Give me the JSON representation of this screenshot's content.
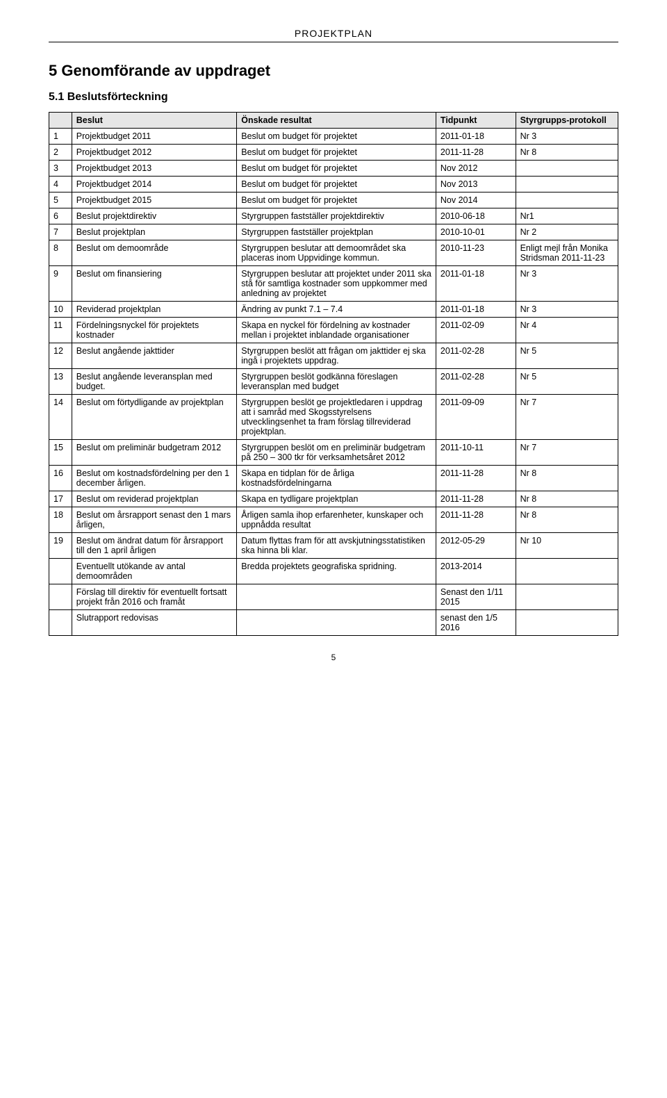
{
  "doc_header": "PROJEKTPLAN",
  "h1": "5  Genomförande av uppdraget",
  "h2": "5.1 Beslutsförteckning",
  "page_number": "5",
  "columns": {
    "c0": "",
    "c1": "Beslut",
    "c2": "Önskade resultat",
    "c3": "Tidpunkt",
    "c4": "Styrgrupps-protokoll"
  },
  "rows": [
    {
      "n": "1",
      "b": "Projektbudget 2011",
      "r": "Beslut om budget för projektet",
      "t": "2011-01-18",
      "p": "Nr 3"
    },
    {
      "n": "2",
      "b": "Projektbudget 2012",
      "r": "Beslut om budget för projektet",
      "t": "2011-11-28",
      "p": "Nr 8"
    },
    {
      "n": "3",
      "b": "Projektbudget 2013",
      "r": "Beslut om budget för projektet",
      "t": "Nov 2012",
      "p": ""
    },
    {
      "n": "4",
      "b": "Projektbudget 2014",
      "r": "Beslut om budget för projektet",
      "t": "Nov 2013",
      "p": ""
    },
    {
      "n": "5",
      "b": "Projektbudget 2015",
      "r": "Beslut om budget för projektet",
      "t": "Nov 2014",
      "p": ""
    },
    {
      "n": "6",
      "b": "Beslut projektdirektiv",
      "r": "Styrgruppen fastställer projektdirektiv",
      "t": "2010-06-18",
      "p": "Nr1"
    },
    {
      "n": "7",
      "b": "Beslut projektplan",
      "r": "Styrgruppen fastställer projektplan",
      "t": "2010-10-01",
      "p": "Nr 2"
    },
    {
      "n": "8",
      "b": "Beslut om demoområde",
      "r": "Styrgruppen beslutar att demoområdet ska placeras inom Uppvidinge kommun.",
      "t": "2010-11-23",
      "p": "Enligt mejl från Monika Stridsman 2011-11-23"
    },
    {
      "n": "9",
      "b": "Beslut om finansiering",
      "r": "Styrgruppen beslutar att projektet under 2011 ska stå för samtliga kostnader som uppkommer med anledning av projektet",
      "t": "2011-01-18",
      "p": "Nr 3"
    },
    {
      "n": "10",
      "b": "Reviderad projektplan",
      "r": "Ändring av punkt 7.1 – 7.4",
      "t": "2011-01-18",
      "p": "Nr 3"
    },
    {
      "n": "11",
      "b": "Fördelningsnyckel för projektets kostnader",
      "r": "Skapa en nyckel för fördelning av kostnader mellan i projektet inblandade organisationer",
      "t": "2011-02-09",
      "p": "Nr 4"
    },
    {
      "n": "12",
      "b": "Beslut angående jakttider",
      "r": "Styrgruppen beslöt att frågan om jakttider ej ska ingå i projektets uppdrag.",
      "t": "2011-02-28",
      "p": "Nr 5"
    },
    {
      "n": "13",
      "b": "Beslut angående leveransplan med budget.",
      "r": "Styrgruppen beslöt godkänna föreslagen leveransplan med budget",
      "t": "2011-02-28",
      "p": "Nr 5"
    },
    {
      "n": "14",
      "b": "Beslut om förtydligande av projektplan",
      "r": "Styrgruppen beslöt ge projektledaren i uppdrag att i samråd med Skogsstyrelsens utvecklingsenhet ta fram förslag tillreviderad projektplan.",
      "t": "2011-09-09",
      "p": "Nr 7"
    },
    {
      "n": "15",
      "b": "Beslut om preliminär budgetram 2012",
      "r": "Styrgruppen beslöt  om en preliminär budgetram på 250 – 300 tkr för verksamhetsåret 2012",
      "t": "2011-10-11",
      "p": "Nr 7"
    },
    {
      "n": "16",
      "b": "Beslut om kostnadsfördelning per den 1 december årligen.",
      "r": "Skapa en tidplan för de årliga kostnadsfördelningarna",
      "t": "2011-11-28",
      "p": "Nr 8"
    },
    {
      "n": "17",
      "b": "Beslut om reviderad projektplan",
      "r": "Skapa en tydligare projektplan",
      "t": "2011-11-28",
      "p": "Nr 8"
    },
    {
      "n": "18",
      "b": "Beslut om årsrapport senast den 1 mars årligen,",
      "r": "Årligen samla ihop erfarenheter, kunskaper och uppnådda resultat",
      "t": "2011-11-28",
      "p": "Nr 8"
    },
    {
      "n": "19",
      "b": "Beslut om ändrat datum för årsrapport till den 1 april årligen",
      "r": "Datum flyttas fram för att avskjutningsstatistiken ska hinna bli klar.",
      "t": "2012-05-29",
      "p": "Nr 10"
    },
    {
      "n": "",
      "b": "Eventuellt utökande av antal demoområden",
      "r": "Bredda projektets geografiska spridning.",
      "t": "2013-2014",
      "p": ""
    },
    {
      "n": "",
      "b": "Förslag till direktiv för eventuellt fortsatt projekt från 2016 och framåt",
      "r": "",
      "t": "Senast den 1/11 2015",
      "p": ""
    },
    {
      "n": "",
      "b": "Slutrapport redovisas",
      "r": "",
      "t": "senast den 1/5 2016",
      "p": ""
    }
  ]
}
